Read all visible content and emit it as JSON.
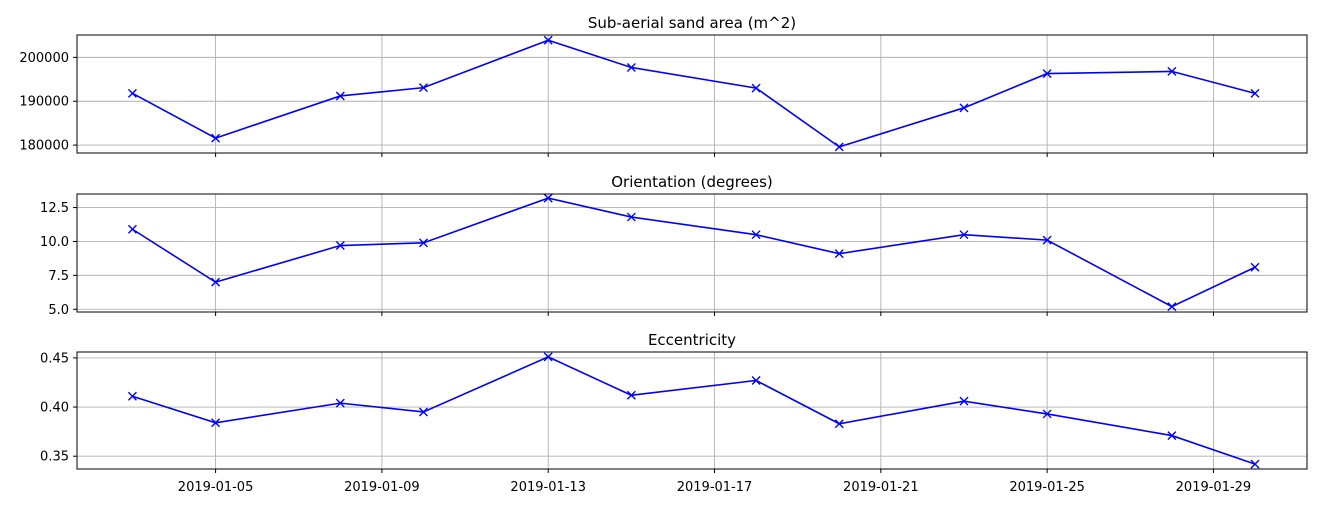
{
  "chart_data": [
    {
      "type": "line",
      "title": "Sub-aerial sand area (m^2)",
      "xlabel": "",
      "ylabel": "",
      "x": [
        "2019-01-03",
        "2019-01-05",
        "2019-01-08",
        "2019-01-10",
        "2019-01-13",
        "2019-01-15",
        "2019-01-18",
        "2019-01-20",
        "2019-01-23",
        "2019-01-25",
        "2019-01-28",
        "2019-01-30"
      ],
      "series": [
        {
          "values": [
            191800,
            181600,
            191200,
            193100,
            203900,
            197700,
            193000,
            179600,
            188500,
            196300,
            196800,
            191800
          ]
        }
      ],
      "ylim": [
        178200,
        205100
      ],
      "yticks": [
        180000,
        190000,
        200000
      ],
      "ytick_labels": [
        "180000",
        "190000",
        "200000"
      ],
      "show_xtick_labels": false,
      "grid": true,
      "color": "#0000ff",
      "marker": "x"
    },
    {
      "type": "line",
      "title": "Orientation (degrees)",
      "xlabel": "",
      "ylabel": "",
      "x": [
        "2019-01-03",
        "2019-01-05",
        "2019-01-08",
        "2019-01-10",
        "2019-01-13",
        "2019-01-15",
        "2019-01-18",
        "2019-01-20",
        "2019-01-23",
        "2019-01-25",
        "2019-01-28",
        "2019-01-30"
      ],
      "series": [
        {
          "values": [
            10.9,
            7.0,
            9.7,
            9.9,
            13.2,
            11.8,
            10.5,
            9.1,
            10.5,
            10.1,
            5.2,
            8.1
          ]
        }
      ],
      "ylim": [
        4.8,
        13.5
      ],
      "yticks": [
        5.0,
        7.5,
        10.0,
        12.5
      ],
      "ytick_labels": [
        "5.0",
        "7.5",
        "10.0",
        "12.5"
      ],
      "show_xtick_labels": false,
      "grid": true,
      "color": "#0000ff",
      "marker": "x"
    },
    {
      "type": "line",
      "title": "Eccentricity",
      "xlabel": "",
      "ylabel": "",
      "x": [
        "2019-01-03",
        "2019-01-05",
        "2019-01-08",
        "2019-01-10",
        "2019-01-13",
        "2019-01-15",
        "2019-01-18",
        "2019-01-20",
        "2019-01-23",
        "2019-01-25",
        "2019-01-28",
        "2019-01-30"
      ],
      "series": [
        {
          "values": [
            0.411,
            0.384,
            0.404,
            0.395,
            0.451,
            0.412,
            0.427,
            0.383,
            0.406,
            0.393,
            0.371,
            0.342
          ]
        }
      ],
      "ylim": [
        0.337,
        0.456
      ],
      "yticks": [
        0.35,
        0.4,
        0.45
      ],
      "ytick_labels": [
        "0.35",
        "0.40",
        "0.45"
      ],
      "show_xtick_labels": true,
      "grid": true,
      "color": "#0000ff",
      "marker": "x"
    }
  ],
  "x_axis": {
    "range": [
      "2019-01-01T16:00",
      "2019-01-31T06:00"
    ],
    "ticks": [
      "2019-01-05",
      "2019-01-09",
      "2019-01-13",
      "2019-01-17",
      "2019-01-21",
      "2019-01-25",
      "2019-01-29"
    ],
    "tick_labels": [
      "2019-01-05",
      "2019-01-09",
      "2019-01-13",
      "2019-01-17",
      "2019-01-21",
      "2019-01-25",
      "2019-01-29"
    ]
  }
}
